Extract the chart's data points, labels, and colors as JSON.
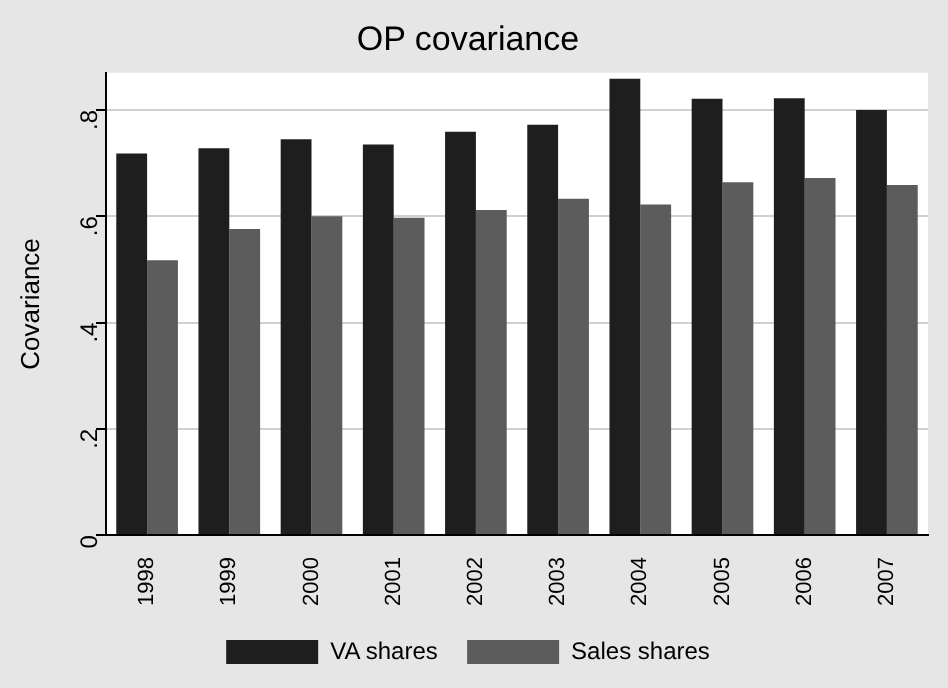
{
  "chart_data": {
    "type": "bar",
    "title": "OP covariance",
    "ylabel": "Covariance",
    "categories": [
      "1998",
      "1999",
      "2000",
      "2001",
      "2002",
      "2003",
      "2004",
      "2005",
      "2006",
      "2007"
    ],
    "series": [
      {
        "name": "VA shares",
        "color": "#1e1e1e",
        "values": [
          0.718,
          0.728,
          0.745,
          0.735,
          0.759,
          0.772,
          0.859,
          0.821,
          0.822,
          0.8
        ]
      },
      {
        "name": "Sales shares",
        "color": "#5c5c5c",
        "values": [
          0.517,
          0.576,
          0.6,
          0.597,
          0.612,
          0.633,
          0.622,
          0.664,
          0.672,
          0.659
        ]
      }
    ],
    "ylim": [
      0,
      0.87
    ],
    "yticks": [
      {
        "value": 0,
        "label": "0"
      },
      {
        "value": 0.2,
        "label": ".2"
      },
      {
        "value": 0.4,
        "label": ".4"
      },
      {
        "value": 0.6,
        "label": ".6"
      },
      {
        "value": 0.8,
        "label": ".8"
      }
    ],
    "grid": "y",
    "legend": "bottom"
  }
}
